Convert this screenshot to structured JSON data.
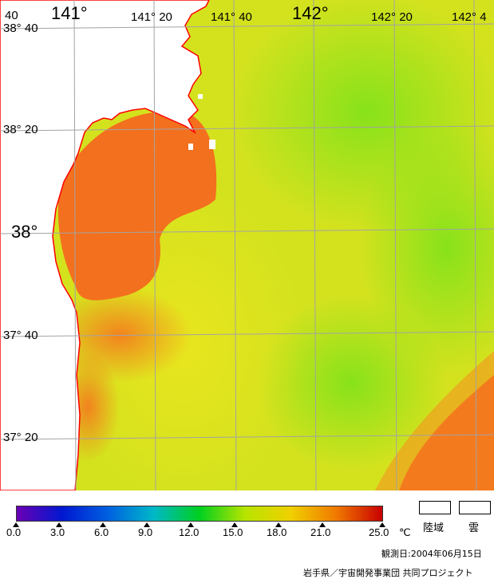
{
  "map": {
    "colors": {
      "land": "#ffffff",
      "coast": "#ff0000",
      "grid": "#a0a0a0",
      "warm": "#f56a1e",
      "mid": "#d8e21e",
      "cool": "#8ce61e"
    },
    "lon_labels": [
      {
        "text": "40",
        "size": "sm"
      },
      {
        "text": "141°",
        "size": "big"
      },
      {
        "text": "141° 20",
        "size": "sm"
      },
      {
        "text": "141° 40",
        "size": "sm"
      },
      {
        "text": "142°",
        "size": "big"
      },
      {
        "text": "142° 20",
        "size": "sm"
      },
      {
        "text": "142° 4",
        "size": "sm"
      }
    ],
    "lat_labels": [
      {
        "text": "38° 40",
        "size": "sm"
      },
      {
        "text": "38° 20",
        "size": "sm"
      },
      {
        "text": "38°",
        "size": "big"
      },
      {
        "text": "37° 40",
        "size": "sm"
      },
      {
        "text": "37° 20",
        "size": "sm"
      }
    ]
  },
  "colorbar": {
    "stops": [
      "#6a00b4",
      "#0018d0",
      "#0060e0",
      "#00b8c8",
      "#00d020",
      "#b8e400",
      "#f0d000",
      "#f07800",
      "#c80000"
    ],
    "ticks": [
      "0.0",
      "3.0",
      "6.0",
      "9.0",
      "12.0",
      "15.0",
      "18.0",
      "21.0",
      "25.0"
    ],
    "unit": "℃"
  },
  "legend": {
    "land_label": "陸域",
    "cloud_label": "雲"
  },
  "footer": {
    "date_text": "観測日:2004年06月15日",
    "credit_text": "岩手県／宇宙開発事業団 共同プロジェクト"
  }
}
